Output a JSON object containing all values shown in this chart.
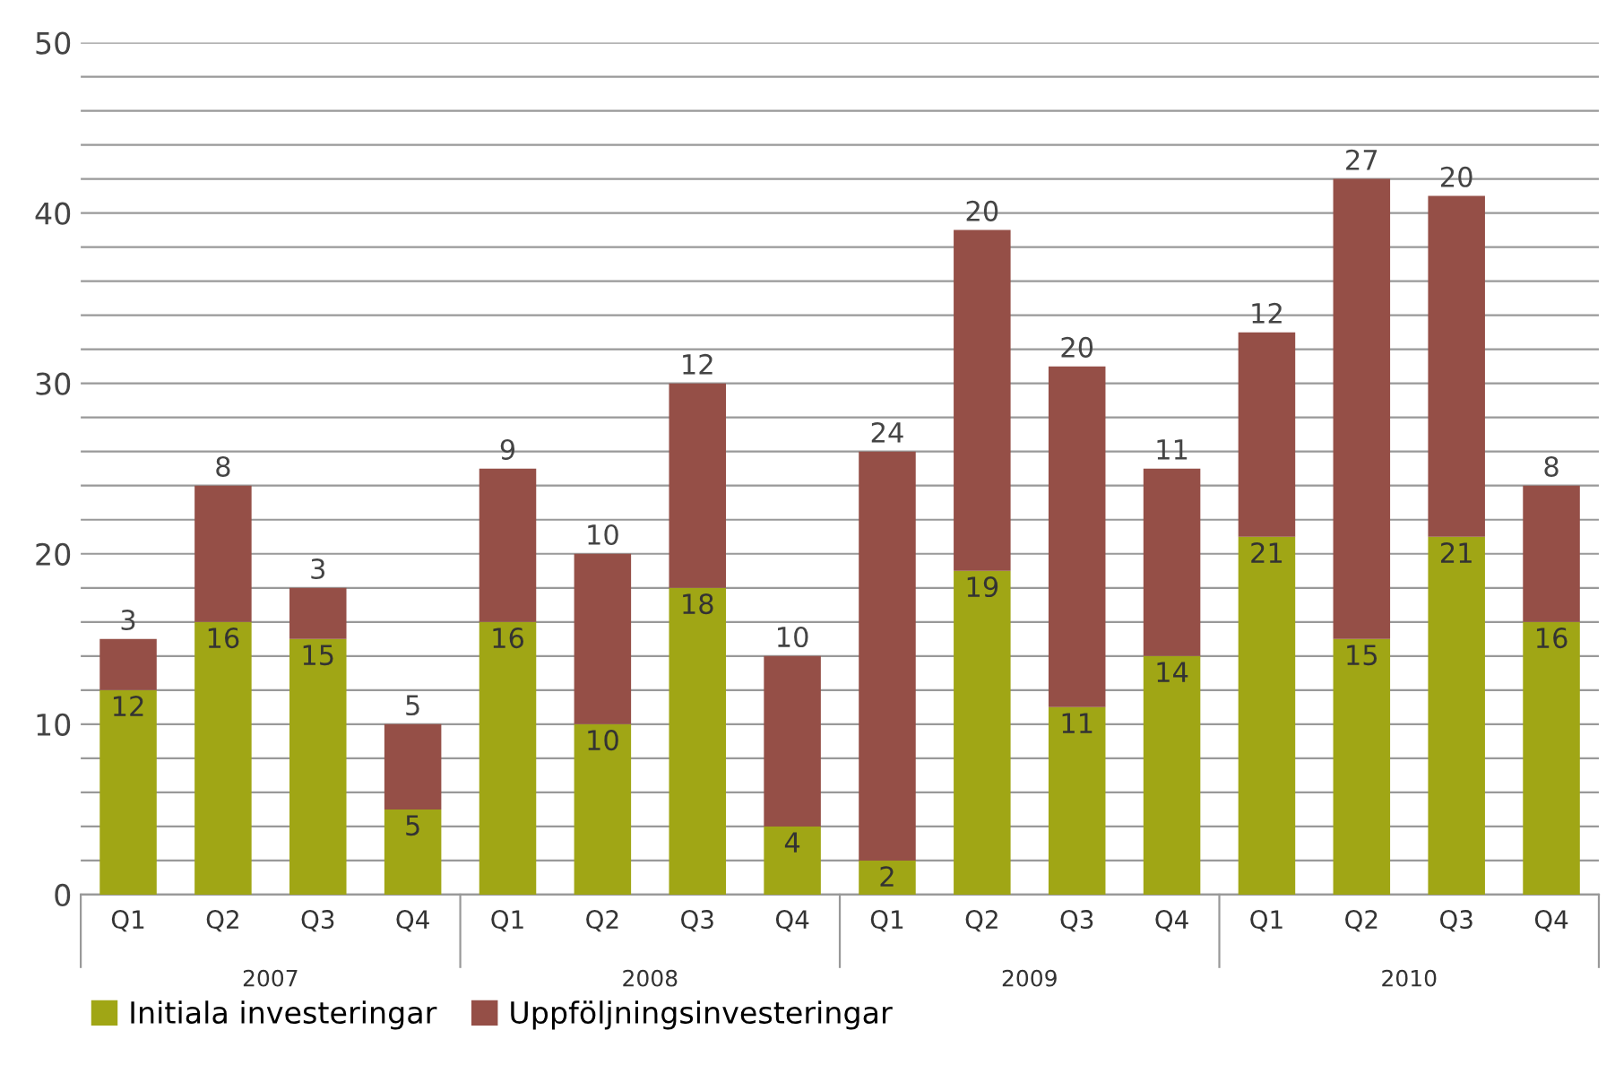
{
  "chart_data": {
    "type": "bar",
    "stacked": true,
    "categories": [
      "Q1",
      "Q2",
      "Q3",
      "Q4",
      "Q1",
      "Q2",
      "Q3",
      "Q4",
      "Q1",
      "Q2",
      "Q3",
      "Q4",
      "Q1",
      "Q2",
      "Q3",
      "Q4"
    ],
    "series": [
      {
        "name": "Initiala investeringar",
        "color": "#a0a615",
        "values": [
          12,
          16,
          15,
          5,
          16,
          10,
          18,
          4,
          2,
          19,
          11,
          14,
          21,
          15,
          21,
          16
        ]
      },
      {
        "name": "Uppföljningsinvesteringar",
        "color": "#954f47",
        "values": [
          3,
          8,
          3,
          5,
          9,
          10,
          12,
          10,
          24,
          20,
          20,
          11,
          12,
          27,
          20,
          8
        ]
      }
    ],
    "annotations": [
      "2007",
      "2008",
      "2009",
      "2010"
    ],
    "ylim": [
      0,
      50
    ],
    "yticks": [
      0,
      {
        "value": 2,
        "label": null
      },
      {
        "value": 4,
        "label": null
      },
      {
        "value": 6,
        "label": null
      },
      {
        "value": 8,
        "label": null
      },
      10,
      {
        "value": 12,
        "label": null
      },
      {
        "value": 14,
        "label": null
      },
      {
        "value": 16,
        "label": null
      },
      {
        "value": 18,
        "label": null
      },
      20,
      {
        "value": 22,
        "label": null
      },
      {
        "value": 24,
        "label": null
      },
      {
        "value": 26,
        "label": null
      },
      {
        "value": 28,
        "label": null
      },
      30,
      {
        "value": 32,
        "label": null
      },
      {
        "value": 34,
        "label": null
      },
      {
        "value": 36,
        "label": null
      },
      {
        "value": 38,
        "label": null
      },
      40,
      {
        "value": 42,
        "label": null
      },
      {
        "value": 44,
        "label": null
      },
      {
        "value": 46,
        "label": null
      },
      {
        "value": 48,
        "label": null
      },
      50
    ],
    "grid": "y",
    "data_labels": true,
    "legend": "bottom left"
  }
}
